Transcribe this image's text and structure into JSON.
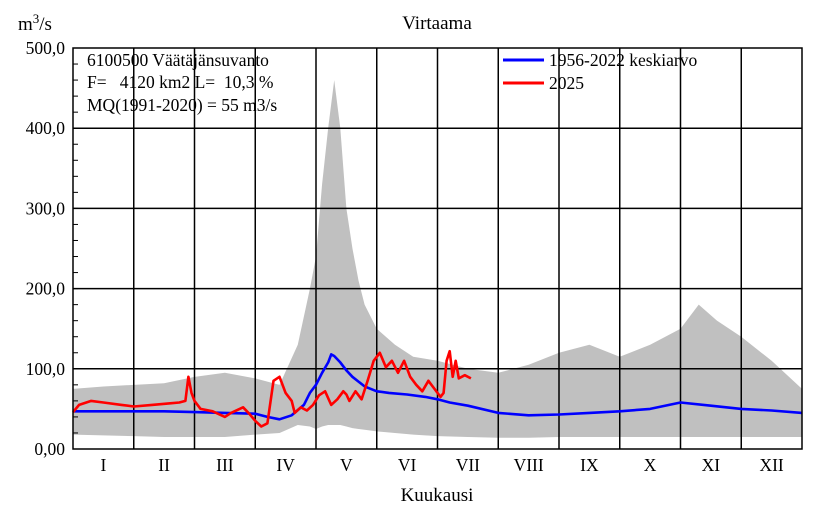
{
  "chart_data": {
    "type": "line",
    "title": "Virtaama",
    "ylabel": "m3/s",
    "ylabel_base": "m",
    "ylabel_sup": "3",
    "ylabel_rest": "/s",
    "xlabel": "Kuukausi",
    "ylim": [
      0,
      500
    ],
    "y_ticks": [
      "500,0",
      "400,0",
      "300,0",
      "200,0",
      "100,0",
      "0,00"
    ],
    "y_tick_values": [
      500,
      400,
      300,
      200,
      100,
      0
    ],
    "x_ticks": [
      "I",
      "II",
      "III",
      "IV",
      "V",
      "VI",
      "VII",
      "VIII",
      "IX",
      "X",
      "XI",
      "XII"
    ],
    "grid": true,
    "legend_position": "top-right",
    "info_lines": [
      "6100500 Väätäjänsuvanto",
      "F=   4120 km2 L=  10,3 %",
      "MQ(1991-2020) = 55 m3/s"
    ],
    "range_band": {
      "color": "#c0c0c0",
      "x": [
        0,
        0.5,
        1,
        1.5,
        2,
        2.5,
        3,
        3.4,
        3.7,
        3.9,
        4.0,
        4.1,
        4.2,
        4.3,
        4.4,
        4.5,
        4.6,
        4.7,
        4.8,
        5.0,
        5.3,
        5.6,
        6.0,
        6.5,
        7.0,
        7.5,
        8.0,
        8.5,
        9.0,
        9.5,
        10.0,
        10.3,
        10.6,
        11.0,
        11.5,
        12.0
      ],
      "upper": [
        75,
        78,
        80,
        82,
        90,
        95,
        88,
        80,
        130,
        200,
        240,
        330,
        400,
        460,
        400,
        300,
        250,
        210,
        180,
        150,
        130,
        115,
        110,
        100,
        95,
        105,
        120,
        130,
        115,
        130,
        150,
        180,
        160,
        140,
        110,
        75
      ],
      "lower": [
        18,
        17,
        16,
        15,
        15,
        15,
        18,
        20,
        30,
        28,
        25,
        28,
        30,
        30,
        30,
        28,
        26,
        25,
        24,
        22,
        20,
        18,
        16,
        15,
        14,
        14,
        15,
        15,
        15,
        15,
        15,
        15,
        15,
        15,
        15,
        15
      ]
    },
    "series": [
      {
        "name": "1956-2022 keskiarvo",
        "color": "#0000ff",
        "x": [
          0,
          0.5,
          1,
          1.5,
          2,
          2.5,
          3,
          3.2,
          3.4,
          3.6,
          3.8,
          3.9,
          4.0,
          4.1,
          4.2,
          4.25,
          4.3,
          4.4,
          4.5,
          4.6,
          4.7,
          4.8,
          5.0,
          5.2,
          5.5,
          5.8,
          6.0,
          6.2,
          6.5,
          7.0,
          7.5,
          8.0,
          8.5,
          9.0,
          9.5,
          10.0,
          10.5,
          11.0,
          11.5,
          12.0
        ],
        "y": [
          47,
          47,
          47,
          47,
          46,
          45,
          44,
          40,
          37,
          42,
          55,
          70,
          80,
          95,
          108,
          118,
          116,
          108,
          98,
          90,
          84,
          78,
          72,
          70,
          68,
          65,
          62,
          58,
          54,
          45,
          42,
          43,
          45,
          47,
          50,
          58,
          54,
          50,
          48,
          45
        ]
      },
      {
        "name": "2025",
        "color": "#ff0000",
        "x": [
          0,
          0.1,
          0.3,
          0.5,
          0.8,
          1.0,
          1.3,
          1.6,
          1.75,
          1.85,
          1.9,
          1.95,
          2.0,
          2.1,
          2.3,
          2.5,
          2.6,
          2.8,
          2.9,
          3.0,
          3.1,
          3.2,
          3.3,
          3.4,
          3.5,
          3.6,
          3.65,
          3.75,
          3.85,
          3.95,
          4.05,
          4.15,
          4.25,
          4.35,
          4.45,
          4.5,
          4.55,
          4.65,
          4.75,
          4.85,
          4.95,
          5.05,
          5.15,
          5.25,
          5.35,
          5.45,
          5.55,
          5.65,
          5.75,
          5.85,
          5.95,
          6.05,
          6.1,
          6.15,
          6.2,
          6.25,
          6.3,
          6.35,
          6.45,
          6.55
        ],
        "y": [
          46,
          55,
          60,
          58,
          55,
          53,
          55,
          57,
          58,
          60,
          90,
          70,
          60,
          50,
          47,
          40,
          45,
          52,
          44,
          35,
          28,
          32,
          85,
          90,
          70,
          60,
          45,
          52,
          48,
          55,
          67,
          72,
          55,
          62,
          72,
          68,
          60,
          72,
          62,
          85,
          110,
          120,
          102,
          110,
          95,
          110,
          90,
          80,
          72,
          85,
          75,
          65,
          70,
          110,
          122,
          90,
          110,
          88,
          92,
          88
        ]
      }
    ]
  }
}
